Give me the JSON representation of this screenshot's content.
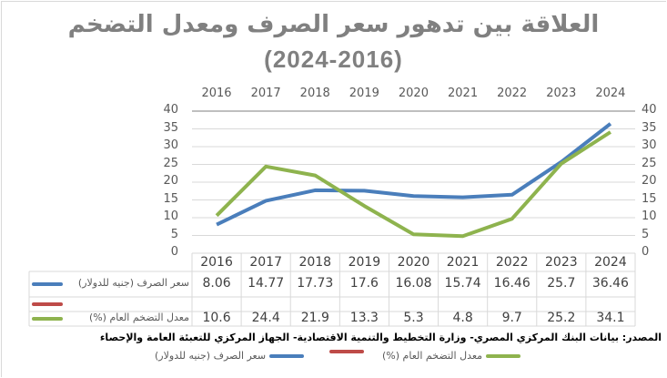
{
  "title": {
    "line1": "العلاقة بين تدهور سعر الصرف ومعدل التضخم",
    "line2": "(2024-2016)"
  },
  "colors": {
    "exchange_rate": "#4a7ebb",
    "inflation": "#8eb34e",
    "empty_series": "#be4b48",
    "gridline": "#d9d9d9",
    "title": "#808080"
  },
  "axes": {
    "left_ticks": [
      "40",
      "35",
      "30",
      "25",
      "20",
      "15",
      "10",
      "5",
      "0"
    ],
    "right_ticks": [
      "40",
      "35",
      "30",
      "25",
      "20",
      "15",
      "10",
      "5",
      "0"
    ],
    "top_ticks": [
      "2016",
      "2017",
      "2018",
      "2019",
      "2020",
      "2021",
      "2022",
      "2023",
      "2024"
    ]
  },
  "table": {
    "header": [
      "2016",
      "2017",
      "2018",
      "2019",
      "2020",
      "2021",
      "2022",
      "2023",
      "2024"
    ],
    "rows": [
      {
        "label": "سعر الصرف (جنيه للدولار)",
        "values": [
          "8.06",
          "14.77",
          "17.73",
          "17.6",
          "16.08",
          "15.74",
          "16.46",
          "25.7",
          "36.46"
        ]
      },
      {
        "label": "",
        "values": [
          "",
          "",
          "",
          "",
          "",
          "",
          "",
          "",
          ""
        ]
      },
      {
        "label": "معدل التضخم العام (%)",
        "values": [
          "10.6",
          "24.4",
          "21.9",
          "13.3",
          "5.3",
          "4.8",
          "9.7",
          "25.2",
          "34.1"
        ]
      }
    ]
  },
  "source": "المصدر: بيانات البنك المركزي المصري- وزارة التخطيط والتنمية الاقتصادية- الجهاز المركزي للتعبئة العامة والإحصاء",
  "legend": {
    "exchange_rate": "سعر الصرف (جنيه للدولار)",
    "empty": "",
    "inflation": "معدل التضخم العام (%)"
  },
  "chart_data": {
    "type": "line",
    "title": "العلاقة بين تدهور سعر الصرف ومعدل التضخم (2024-2016)",
    "categories": [
      "2016",
      "2017",
      "2018",
      "2019",
      "2020",
      "2021",
      "2022",
      "2023",
      "2024"
    ],
    "series": [
      {
        "name": "سعر الصرف (جنيه للدولار)",
        "color": "#4a7ebb",
        "values": [
          8.06,
          14.77,
          17.73,
          17.6,
          16.08,
          15.74,
          16.46,
          25.7,
          36.46
        ]
      },
      {
        "name": "",
        "color": "#be4b48",
        "values": [
          null,
          null,
          null,
          null,
          null,
          null,
          null,
          null,
          null
        ]
      },
      {
        "name": "معدل التضخم العام (%)",
        "color": "#8eb34e",
        "values": [
          10.6,
          24.4,
          21.9,
          13.3,
          5.3,
          4.8,
          9.7,
          25.2,
          34.1
        ]
      }
    ],
    "xlabel": "",
    "ylabel": "",
    "ylim": [
      0,
      40
    ],
    "y2lim": [
      0,
      40
    ],
    "yticks": [
      0,
      5,
      10,
      15,
      20,
      25,
      30,
      35,
      40
    ],
    "grid": true,
    "legend_position": "bottom",
    "data_table": true,
    "source": "المصدر: بيانات البنك المركزي المصري- وزارة التخطيط والتنمية الاقتصادية- الجهاز المركزي للتعبئة العامة والإحصاء"
  }
}
